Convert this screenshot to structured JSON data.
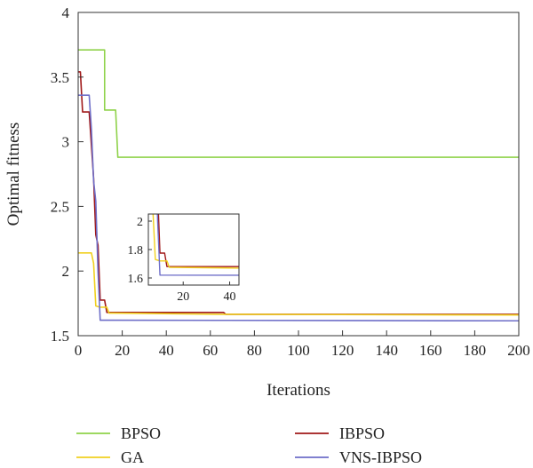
{
  "chart_data": {
    "type": "line",
    "title": "",
    "xlabel": "Iterations",
    "ylabel": "Optimal fitness",
    "xlim": [
      0,
      200
    ],
    "ylim": [
      1.5,
      4
    ],
    "xticks": [
      0,
      20,
      40,
      60,
      80,
      100,
      120,
      140,
      160,
      180,
      200
    ],
    "yticks": [
      1.5,
      2,
      2.5,
      3,
      3.5,
      4
    ],
    "grid": false,
    "legend_position": "bottom",
    "series": [
      {
        "name": "BPSO",
        "color": "#8fd24a",
        "points": [
          [
            0,
            3.71
          ],
          [
            12,
            3.71
          ],
          [
            12,
            3.245
          ],
          [
            17,
            3.245
          ],
          [
            18,
            2.88
          ],
          [
            200,
            2.88
          ]
        ]
      },
      {
        "name": "IBPSO",
        "color": "#a01818",
        "points": [
          [
            0,
            3.54
          ],
          [
            1,
            3.54
          ],
          [
            2,
            3.23
          ],
          [
            5,
            3.23
          ],
          [
            7,
            2.72
          ],
          [
            8,
            2.28
          ],
          [
            9,
            2.2
          ],
          [
            10,
            1.775
          ],
          [
            12,
            1.775
          ],
          [
            13,
            1.68
          ],
          [
            15,
            1.68
          ],
          [
            66,
            1.68
          ],
          [
            67,
            1.665
          ],
          [
            200,
            1.665
          ]
        ]
      },
      {
        "name": "GA",
        "color": "#f0d020",
        "points": [
          [
            0,
            2.14
          ],
          [
            6,
            2.14
          ],
          [
            7,
            2.06
          ],
          [
            8,
            1.73
          ],
          [
            10,
            1.72
          ],
          [
            13,
            1.72
          ],
          [
            14,
            1.675
          ],
          [
            66,
            1.665
          ],
          [
            200,
            1.66
          ]
        ]
      },
      {
        "name": "VNS-IBPSO",
        "color": "#6e6ec8",
        "points": [
          [
            0,
            3.36
          ],
          [
            1,
            3.36
          ],
          [
            2,
            3.36
          ],
          [
            5,
            3.36
          ],
          [
            6,
            3.1
          ],
          [
            7,
            2.7
          ],
          [
            8,
            2.54
          ],
          [
            9,
            2.0
          ],
          [
            10,
            1.62
          ],
          [
            200,
            1.615
          ]
        ]
      }
    ],
    "inset": {
      "xlim": [
        5,
        44
      ],
      "ylim": [
        1.55,
        2.05
      ],
      "xticks": [
        20,
        40
      ],
      "yticks": [
        1.6,
        1.8,
        2.0
      ],
      "ytick_labels": [
        "1.6",
        "1.8",
        "2"
      ]
    }
  }
}
